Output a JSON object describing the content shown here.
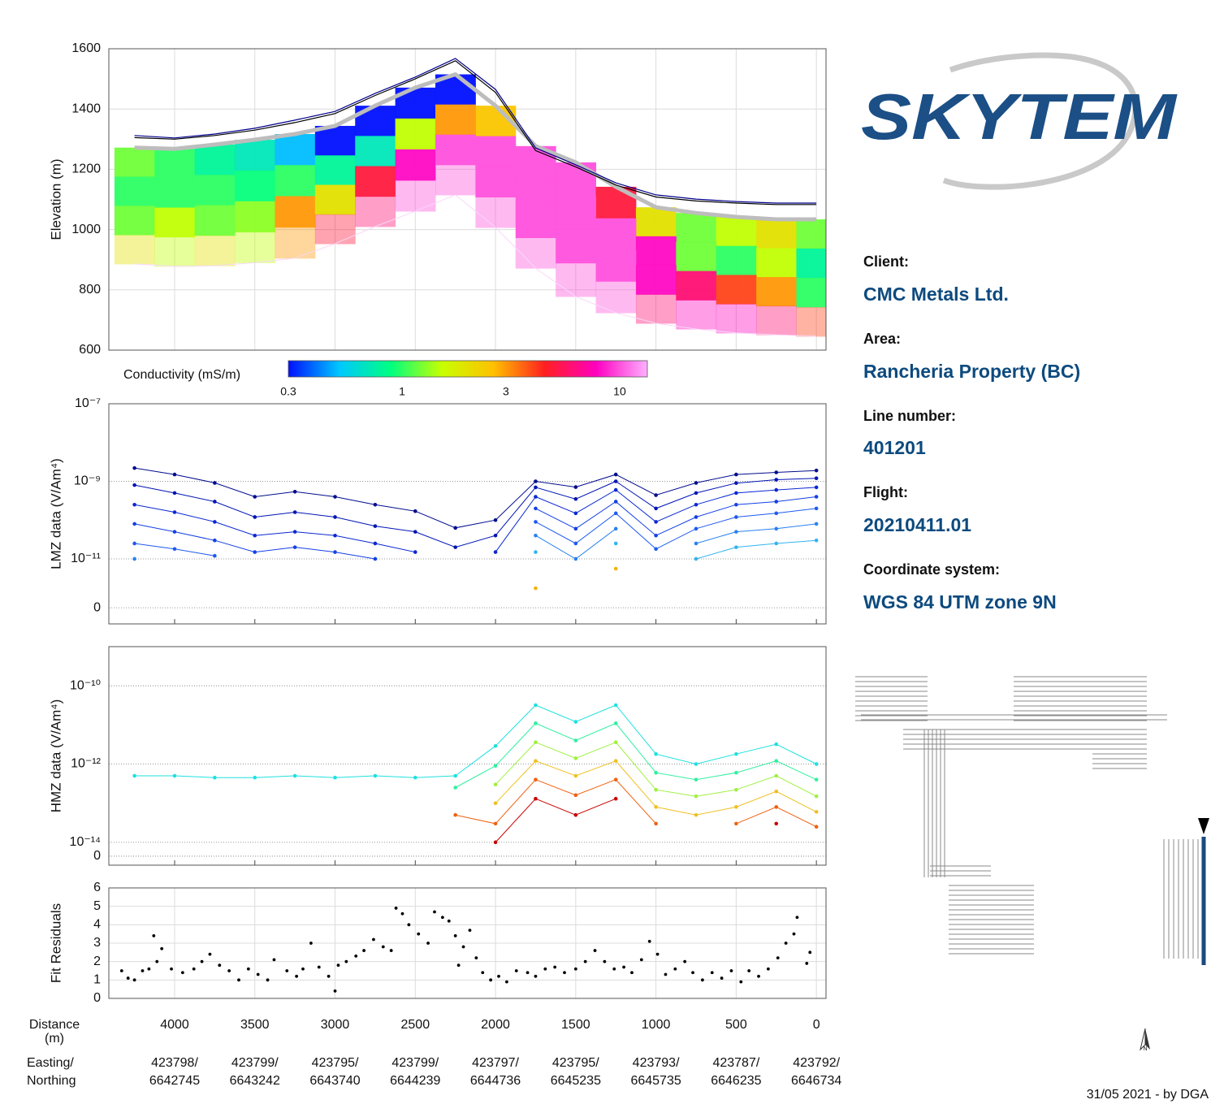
{
  "chart_data": [
    {
      "type": "section",
      "ylabel": "Elevation (m)",
      "xlim": [
        4410,
        -60
      ],
      "ylim": [
        600,
        1600
      ],
      "xticks": [
        4000,
        3500,
        3000,
        2500,
        2000,
        1500,
        1000,
        500,
        0
      ],
      "yticks": [
        600,
        800,
        1000,
        1200,
        1400,
        1600
      ],
      "grid": true,
      "x": [
        4250,
        4000,
        3750,
        3500,
        3250,
        3000,
        2750,
        2500,
        2250,
        2000,
        1750,
        1500,
        1250,
        1000,
        750,
        500,
        250,
        0
      ],
      "series": [
        {
          "color": "#00008b",
          "values": [
            1312,
            1304,
            1317,
            1336,
            1363,
            1392,
            1452,
            1506,
            1568,
            1465,
            1271,
            1215,
            1155,
            1115,
            1101,
            1093,
            1088,
            1088
          ]
        },
        {
          "color": "#000000",
          "values": [
            1305,
            1300,
            1312,
            1330,
            1355,
            1385,
            1445,
            1500,
            1560,
            1455,
            1262,
            1208,
            1148,
            1108,
            1095,
            1088,
            1083,
            1083
          ]
        }
      ],
      "section_top": [
        1272,
        1268,
        1282,
        1298,
        1317,
        1344,
        1411,
        1471,
        1515,
        1411,
        1277,
        1223,
        1142,
        1074,
        1055,
        1042,
        1034,
        1034
      ],
      "section_bottom": [
        886,
        878,
        880,
        890,
        905,
        953,
        1010,
        1061,
        1115,
        1007,
        872,
        778,
        724,
        689,
        670,
        657,
        651,
        646
      ],
      "conductivity": [
        [
          1.2,
          1.0,
          0.8,
          0.7,
          0.5,
          0.3,
          0.3,
          0.3,
          0.3,
          2.5,
          10,
          10,
          5,
          2,
          1.2,
          1.5,
          2,
          1.2
        ],
        [
          1.0,
          1.0,
          1.0,
          0.9,
          1.0,
          0.8,
          0.7,
          1.5,
          3,
          10,
          10,
          10,
          10,
          8,
          1.2,
          1.0,
          1.5,
          0.8
        ],
        [
          1.2,
          1.5,
          1.2,
          1.3,
          3,
          2,
          5,
          8,
          10,
          10,
          10,
          10,
          10,
          8,
          6,
          4,
          3,
          1.0
        ],
        [
          2,
          1.5,
          2,
          1.5,
          3,
          5,
          6,
          10,
          10,
          10,
          10,
          10,
          10,
          6,
          8,
          8,
          6,
          4
        ]
      ],
      "colorbar": {
        "label": "Conductivity (mS/m)",
        "lim": [
          0.3,
          13.4
        ],
        "ticks": [
          0.3,
          1,
          3,
          10
        ],
        "colors": [
          "#0010ff",
          "#00c8ff",
          "#00ff80",
          "#c8ff00",
          "#ffc000",
          "#ff2020",
          "#ff00c0",
          "#ffb0ff"
        ]
      }
    },
    {
      "type": "line",
      "ylabel": "LMZ data (V/Am⁴)",
      "xlim": [
        4410,
        -60
      ],
      "ylim": [
        -3.3e-12,
        1e-07
      ],
      "yscale": "symlog",
      "linthresh": 1e-11,
      "xticks": [
        4000,
        3500,
        3000,
        2500,
        2000,
        1500,
        1000,
        500,
        0
      ],
      "yticks": [
        {
          "value": 1e-07,
          "label": "10⁻⁷"
        },
        {
          "value": 1e-09,
          "label": "10⁻⁹"
        },
        {
          "value": 1e-11,
          "label": "10⁻¹¹"
        },
        0
      ],
      "grid": "y",
      "x": [
        4250,
        4000,
        3750,
        3500,
        3250,
        3000,
        2750,
        2500,
        2250,
        2000,
        1750,
        1500,
        1250,
        1000,
        750,
        500,
        250,
        0
      ],
      "series": [
        {
          "color": "#000c8c",
          "values": [
            2.2e-09,
            1.5e-09,
            9.1e-10,
            4e-10,
            5.4e-10,
            4e-10,
            2.5e-10,
            1.7e-10,
            6.3e-11,
            1e-10,
            1e-09,
            7.1e-10,
            1.5e-09,
            4.4e-10,
            9.1e-10,
            1.5e-09,
            1.7e-09,
            1.9e-09
          ]
        },
        {
          "color": "#0014b4",
          "values": [
            8e-10,
            5e-10,
            3e-10,
            1.2e-10,
            1.6e-10,
            1.2e-10,
            7e-11,
            5e-11,
            2e-11,
            4e-11,
            7e-10,
            3.5e-10,
            1e-09,
            2e-10,
            5e-10,
            9e-10,
            1.1e-09,
            1.2e-09
          ]
        },
        {
          "color": "#0a28d2",
          "values": [
            2.5e-10,
            1.6e-10,
            9e-11,
            4e-11,
            5e-11,
            4e-11,
            2.5e-11,
            1.5e-11,
            null,
            1.5e-11,
            4e-10,
            1.5e-10,
            6e-10,
            9e-11,
            2.5e-10,
            5e-10,
            6e-10,
            7e-10
          ]
        },
        {
          "color": "#1440e6",
          "values": [
            8e-11,
            5e-11,
            3e-11,
            1.5e-11,
            2e-11,
            1.5e-11,
            1e-11,
            null,
            null,
            null,
            2e-10,
            6e-11,
            3e-10,
            4e-11,
            1.2e-10,
            2.5e-10,
            3e-10,
            4e-10
          ]
        },
        {
          "color": "#1e5af0",
          "values": [
            2.5e-11,
            1.8e-11,
            1.2e-11,
            null,
            null,
            null,
            null,
            null,
            null,
            null,
            9e-11,
            2.5e-11,
            1.5e-10,
            1.8e-11,
            6e-11,
            1.2e-10,
            1.5e-10,
            2e-10
          ]
        },
        {
          "color": "#2882f0",
          "values": [
            1e-11,
            null,
            null,
            null,
            null,
            null,
            null,
            null,
            null,
            null,
            4e-11,
            1e-11,
            6e-11,
            null,
            2.5e-11,
            5e-11,
            6e-11,
            8e-11
          ]
        },
        {
          "color": "#32b4f0",
          "values": [
            null,
            null,
            null,
            null,
            null,
            null,
            null,
            null,
            null,
            null,
            1.5e-11,
            null,
            2.5e-11,
            null,
            1e-11,
            2e-11,
            2.5e-11,
            3e-11
          ]
        },
        {
          "color": "#f0b400",
          "values": [
            null,
            null,
            null,
            null,
            null,
            null,
            null,
            null,
            null,
            null,
            4e-12,
            null,
            8e-12,
            null,
            null,
            null,
            null,
            null
          ]
        }
      ]
    },
    {
      "type": "line",
      "ylabel": "HMZ data (V/Am⁴)",
      "xlim": [
        4410,
        -60
      ],
      "ylim": [
        -6.5e-15,
        1e-09
      ],
      "yscale": "symlog",
      "linthresh": 1e-14,
      "xticks": [
        4000,
        3500,
        3000,
        2500,
        2000,
        1500,
        1000,
        500,
        0
      ],
      "yticks": [
        {
          "value": 1e-10,
          "label": "10⁻¹⁰"
        },
        {
          "value": 1e-12,
          "label": "10⁻¹²"
        },
        {
          "value": 1e-14,
          "label": "10⁻¹⁴"
        },
        0
      ],
      "grid": "y",
      "x": [
        4250,
        4000,
        3750,
        3500,
        3250,
        3000,
        2750,
        2500,
        2250,
        2000,
        1750,
        1500,
        1250,
        1000,
        750,
        500,
        250,
        0
      ],
      "series": [
        {
          "color": "#20e0e0",
          "values": [
            5e-13,
            5e-13,
            4.5e-13,
            4.5e-13,
            5e-13,
            4.5e-13,
            5e-13,
            4.5e-13,
            5e-13,
            2.9e-12,
            3.2e-11,
            1.2e-11,
            3.2e-11,
            1.8e-12,
            1e-12,
            1.8e-12,
            3.2e-12,
            1e-12
          ]
        },
        {
          "color": "#30f0a0",
          "values": [
            null,
            null,
            null,
            null,
            null,
            null,
            null,
            null,
            2.5e-13,
            9e-13,
            1.1e-11,
            4e-12,
            1.1e-11,
            6e-13,
            4e-13,
            6e-13,
            1.2e-12,
            4e-13
          ]
        },
        {
          "color": "#a0f040",
          "values": [
            null,
            null,
            null,
            null,
            null,
            null,
            null,
            null,
            null,
            3e-13,
            3.6e-12,
            1.4e-12,
            3.6e-12,
            2.2e-13,
            1.5e-13,
            2.2e-13,
            5e-13,
            1.5e-13
          ]
        },
        {
          "color": "#f0c020",
          "values": [
            null,
            null,
            null,
            null,
            null,
            null,
            null,
            null,
            null,
            1e-13,
            1.2e-12,
            5e-13,
            1.2e-12,
            8e-14,
            5e-14,
            8e-14,
            2e-13,
            6e-14
          ]
        },
        {
          "color": "#f06010",
          "values": [
            null,
            null,
            null,
            null,
            null,
            null,
            null,
            null,
            5e-14,
            3e-14,
            4e-13,
            1.6e-13,
            4e-13,
            3e-14,
            null,
            3e-14,
            8e-14,
            2.5e-14
          ]
        },
        {
          "color": "#c80000",
          "values": [
            null,
            null,
            null,
            null,
            null,
            null,
            null,
            null,
            null,
            1e-14,
            1.3e-13,
            5e-14,
            1.3e-13,
            null,
            null,
            null,
            3e-14,
            null
          ]
        }
      ]
    },
    {
      "type": "scatter",
      "ylabel": "Fit Residuals",
      "color": "#000000",
      "xlim": [
        4410,
        -60
      ],
      "ylim": [
        0,
        6
      ],
      "xticks": [
        4000,
        3500,
        3000,
        2500,
        2000,
        1500,
        1000,
        500,
        0
      ],
      "yticks": [
        0,
        1,
        2,
        3,
        4,
        5,
        6
      ],
      "grid": true,
      "x": [
        4330,
        4290,
        4250,
        4200,
        4160,
        4110,
        4130,
        4080,
        4020,
        3950,
        3880,
        3830,
        3780,
        3720,
        3660,
        3600,
        3540,
        3480,
        3420,
        3380,
        3300,
        3240,
        3200,
        3150,
        3100,
        3040,
        2980,
        3000,
        2930,
        2870,
        2820,
        2760,
        2700,
        2650,
        2620,
        2580,
        2540,
        2480,
        2420,
        2380,
        2330,
        2290,
        2250,
        2230,
        2200,
        2160,
        2120,
        2080,
        2030,
        1980,
        1930,
        1870,
        1800,
        1750,
        1690,
        1630,
        1570,
        1500,
        1440,
        1380,
        1320,
        1260,
        1200,
        1150,
        1090,
        1040,
        990,
        940,
        880,
        820,
        770,
        710,
        650,
        590,
        530,
        470,
        420,
        360,
        300,
        240,
        190,
        140,
        120,
        60,
        40
      ],
      "values": [
        1.5,
        1.1,
        1.0,
        1.5,
        1.6,
        2.0,
        3.4,
        2.7,
        1.6,
        1.4,
        1.6,
        2.0,
        2.4,
        1.8,
        1.5,
        1.0,
        1.6,
        1.3,
        1.0,
        2.1,
        1.5,
        1.2,
        1.6,
        3.0,
        1.7,
        1.2,
        1.8,
        0.4,
        2.0,
        2.3,
        2.6,
        3.2,
        2.8,
        2.6,
        4.9,
        4.6,
        4.0,
        3.5,
        3.0,
        4.7,
        4.4,
        4.2,
        3.4,
        1.8,
        2.8,
        3.7,
        2.2,
        1.4,
        1.0,
        1.2,
        0.9,
        1.5,
        1.4,
        1.2,
        1.6,
        1.7,
        1.4,
        1.6,
        2.0,
        2.6,
        2.0,
        1.6,
        1.7,
        1.4,
        2.1,
        3.1,
        2.4,
        1.3,
        1.6,
        2.0,
        1.4,
        1.0,
        1.4,
        1.1,
        1.5,
        0.9,
        1.5,
        1.2,
        1.6,
        2.2,
        3.0,
        3.5,
        4.4,
        1.9,
        2.5
      ]
    }
  ],
  "distance_label": [
    "Distance",
    "(m)"
  ],
  "coordinates": {
    "labels": [
      "Easting/",
      "Northing"
    ],
    "values": [
      [
        "423798/",
        "6642745"
      ],
      [
        "423799/",
        "6643242"
      ],
      [
        "423795/",
        "6643740"
      ],
      [
        "423799/",
        "6644239"
      ],
      [
        "423797/",
        "6644736"
      ],
      [
        "423795/",
        "6645235"
      ],
      [
        "423793/",
        "6645735"
      ],
      [
        "423787/",
        "6646235"
      ],
      [
        "423792/",
        "6646734"
      ]
    ]
  },
  "logo": "SKYTEM",
  "north": "N",
  "info": [
    {
      "label": "Client:",
      "value": "CMC Metals Ltd."
    },
    {
      "label": "Area:",
      "value": "Rancheria Property (BC)"
    },
    {
      "label": "Line number:",
      "value": "401201"
    },
    {
      "label": "Flight:",
      "value": "20210411.01"
    },
    {
      "label": "Coordinate system:",
      "value": "WGS 84 UTM zone 9N"
    }
  ],
  "footer": "31/05 2021 - by DGA"
}
